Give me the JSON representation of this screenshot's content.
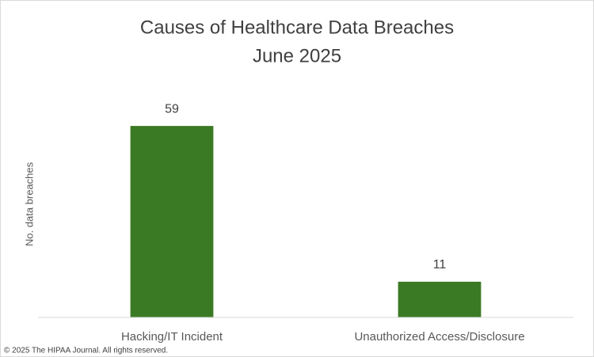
{
  "chart_data": {
    "type": "bar",
    "title": [
      "Causes of Healthcare Data Breaches",
      "June 2025"
    ],
    "y_label": "No. data breaches",
    "categories": [
      "Hacking/IT Incident",
      "Unauthorized Access/Disclosure"
    ],
    "values": [
      59,
      11
    ],
    "color": "#3b7a24",
    "ylim": [
      0,
      70
    ]
  },
  "footer": "© 2025 The HIPAA Journal. All rights reserved."
}
